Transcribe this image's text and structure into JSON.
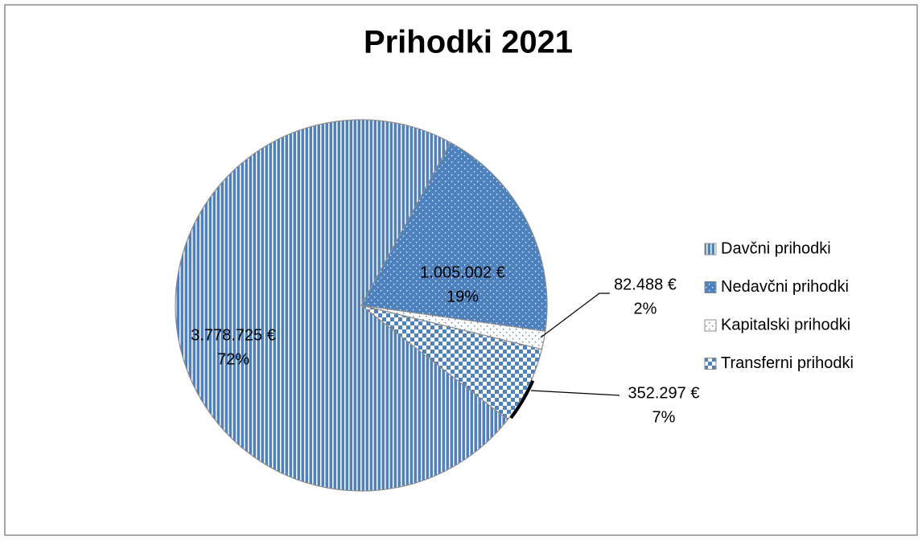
{
  "chart_data": {
    "type": "pie",
    "title": "Prihodki 2021",
    "categories": [
      "Davčni prihodki",
      "Nedavčni prihodki",
      "Kapitalski prihodki",
      "Transferni prihodki"
    ],
    "values": [
      3778725,
      1005002,
      82488,
      352297
    ],
    "value_labels": [
      "3.778.725 €",
      "1.005.002 €",
      "82.488 €",
      "352.297 €"
    ],
    "percentages": [
      72,
      19,
      2,
      7
    ],
    "percentage_labels": [
      "72%",
      "19%",
      "2%",
      "7%"
    ],
    "colors": [
      "#4f81bd",
      "#4f81bd",
      "#4f81bd",
      "#4f81bd"
    ],
    "legend": "right"
  }
}
